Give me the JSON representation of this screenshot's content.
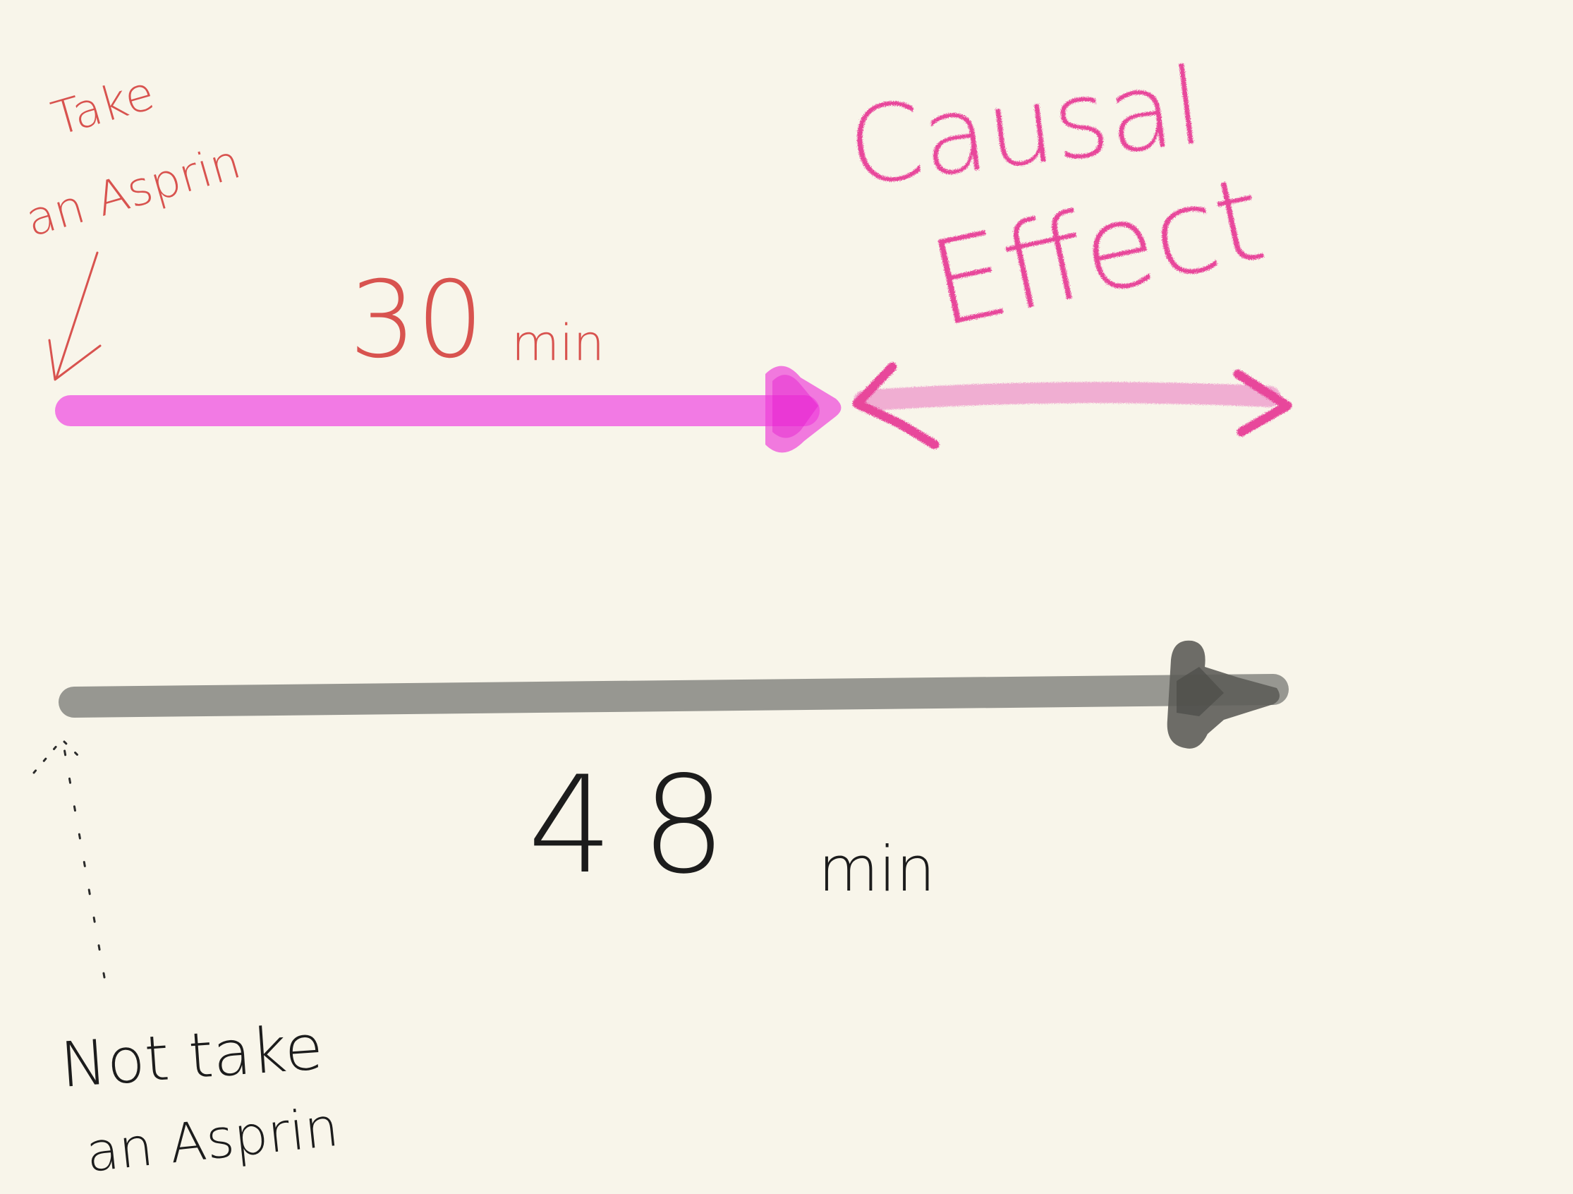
{
  "labels": {
    "take_line1": "Take",
    "take_line2": "an Asprin",
    "treated_duration": "30",
    "treated_unit": "min",
    "causal_line1": "Causal",
    "causal_line2": "Effect",
    "control_duration": "48",
    "control_unit": "min",
    "not_take_line1": "Not take",
    "not_take_line2": "an Asprin"
  },
  "colors": {
    "background": "#f8f5ea",
    "treated_arrow": "#f27ae4",
    "treated_head": "#ee3ed8",
    "control_arrow": "#979791",
    "control_head": "#5d5d59",
    "red_ink": "#d8534f",
    "pink_ink": "#e8479b",
    "black_ink": "#1c1c1c"
  },
  "values": {
    "treated_minutes": 30,
    "control_minutes": 48
  }
}
